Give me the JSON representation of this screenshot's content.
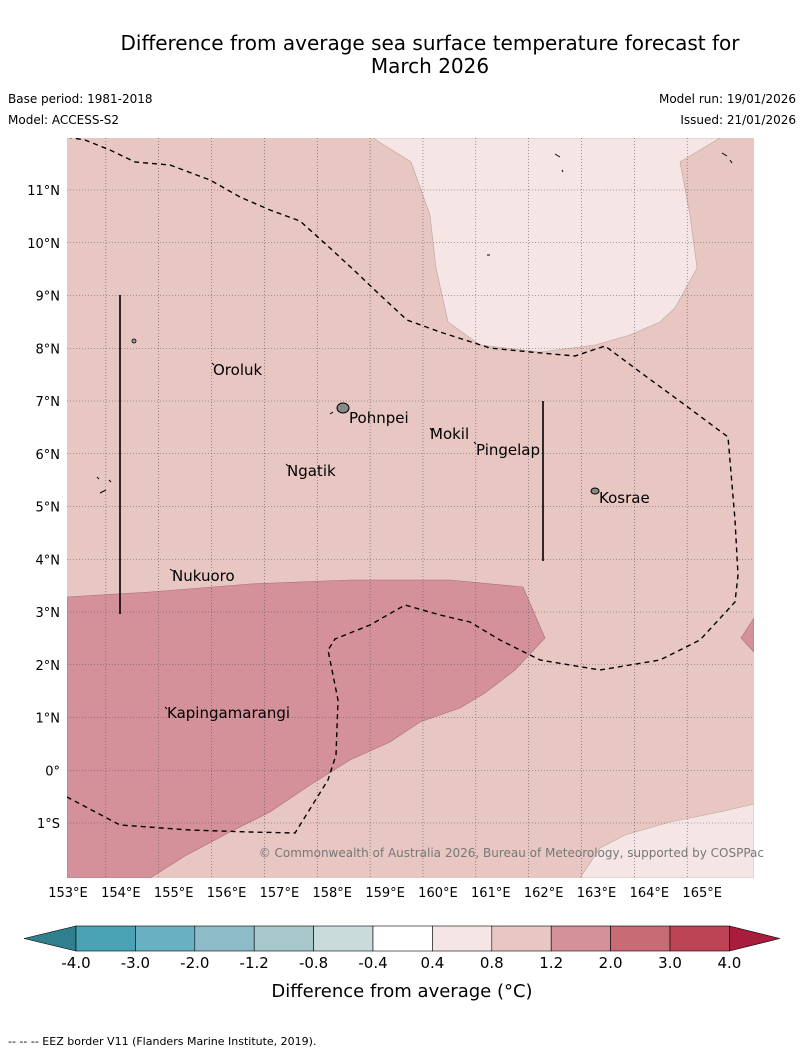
{
  "title_line1": "Difference from average sea surface temperature forecast for",
  "title_line2": "March 2026",
  "meta": {
    "base_period": "Base period: 1981-2018",
    "model": "Model: ACCESS-S2",
    "model_run": "Model run: 19/01/2026",
    "issued": "Issued: 21/01/2026"
  },
  "map": {
    "lon_labels": [
      "153°E",
      "154°E",
      "155°E",
      "156°E",
      "157°E",
      "158°E",
      "159°E",
      "160°E",
      "161°E",
      "162°E",
      "163°E",
      "164°E",
      "165°E"
    ],
    "lat_labels": [
      "11°N",
      "10°N",
      "9°N",
      "8°N",
      "7°N",
      "6°N",
      "5°N",
      "4°N",
      "3°N",
      "2°N",
      "1°N",
      "0°",
      "1°S"
    ],
    "places": [
      "Oroluk",
      "Pohnpei",
      "Mokil",
      "Pingelap",
      "Ngatik",
      "Kosrae",
      "Nukuoro",
      "Kapingamarangi"
    ],
    "copyright": "© Commonwealth of Australia 2026, Bureau of Meteorology, supported by COSPPac"
  },
  "colorbar": {
    "ticks": [
      "-4.0",
      "-3.0",
      "-2.0",
      "-1.2",
      "-0.8",
      "-0.4",
      "0.4",
      "0.8",
      "1.2",
      "2.0",
      "3.0",
      "4.0"
    ],
    "colors": [
      "#2f7f8e",
      "#4aa3b5",
      "#69b1c2",
      "#8dbcc8",
      "#a9c8cc",
      "#cadbdb",
      "#ffffff",
      "#f5e6e5",
      "#e8c7c2",
      "#d4919a",
      "#c96b75",
      "#bd4454",
      "#a81d3b"
    ],
    "label": "Difference from average (°C)"
  },
  "footer": "--  --  -- EEZ border V11 (Flanders Marine Institute, 2019)."
}
